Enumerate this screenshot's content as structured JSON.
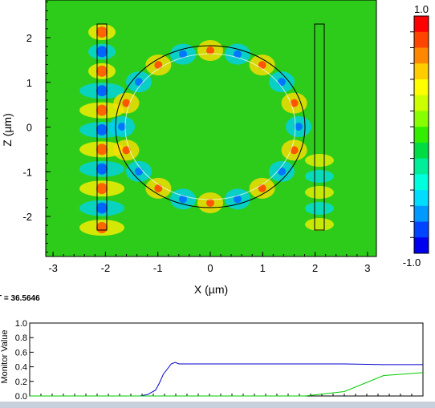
{
  "field_plot": {
    "xlabel": "X (µm)",
    "ylabel": "Z (µm)",
    "xticks": [
      -3,
      -2,
      -1,
      0,
      1,
      2,
      3
    ],
    "yticks": [
      2,
      1,
      0,
      -1,
      -2
    ],
    "xrange": [
      -3.2,
      3.2
    ],
    "zrange": [
      -2.8,
      2.8
    ]
  },
  "colorbar": {
    "max_label": "1.0",
    "min_label": "-1.0",
    "colors": [
      "#ff0000",
      "#ff4400",
      "#ff8800",
      "#ffcc00",
      "#ffff00",
      "#ccff00",
      "#88ff00",
      "#33ee00",
      "#00dd44",
      "#00ee99",
      "#00ffdd",
      "#00ddff",
      "#0099ff",
      "#0044ff",
      "#0000ee"
    ]
  },
  "time_label": "T = 36.5646",
  "chart_data": {
    "type": "line",
    "title": "",
    "xlabel": "",
    "ylabel": "Monitor Value",
    "ylim": [
      0,
      1.0
    ],
    "yticks": [
      "1.0",
      "0.8",
      "0.6",
      "0.4",
      "0.2",
      "0.0"
    ],
    "x": [
      0,
      0.28,
      0.3,
      0.32,
      0.33,
      0.34,
      0.36,
      0.37,
      0.38,
      0.4,
      0.5,
      0.6,
      0.7,
      0.8,
      0.9,
      1.0
    ],
    "series": [
      {
        "color": "#0000cc",
        "values": [
          0,
          0,
          0.02,
          0.08,
          0.18,
          0.3,
          0.44,
          0.46,
          0.44,
          0.44,
          0.44,
          0.44,
          0.44,
          0.44,
          0.43,
          0.43
        ]
      },
      {
        "color": "#00cc00",
        "values": [
          0,
          0,
          0,
          0,
          0,
          0,
          0,
          0,
          0,
          0,
          0,
          0,
          0,
          0.06,
          0.28,
          0.32
        ]
      }
    ]
  }
}
